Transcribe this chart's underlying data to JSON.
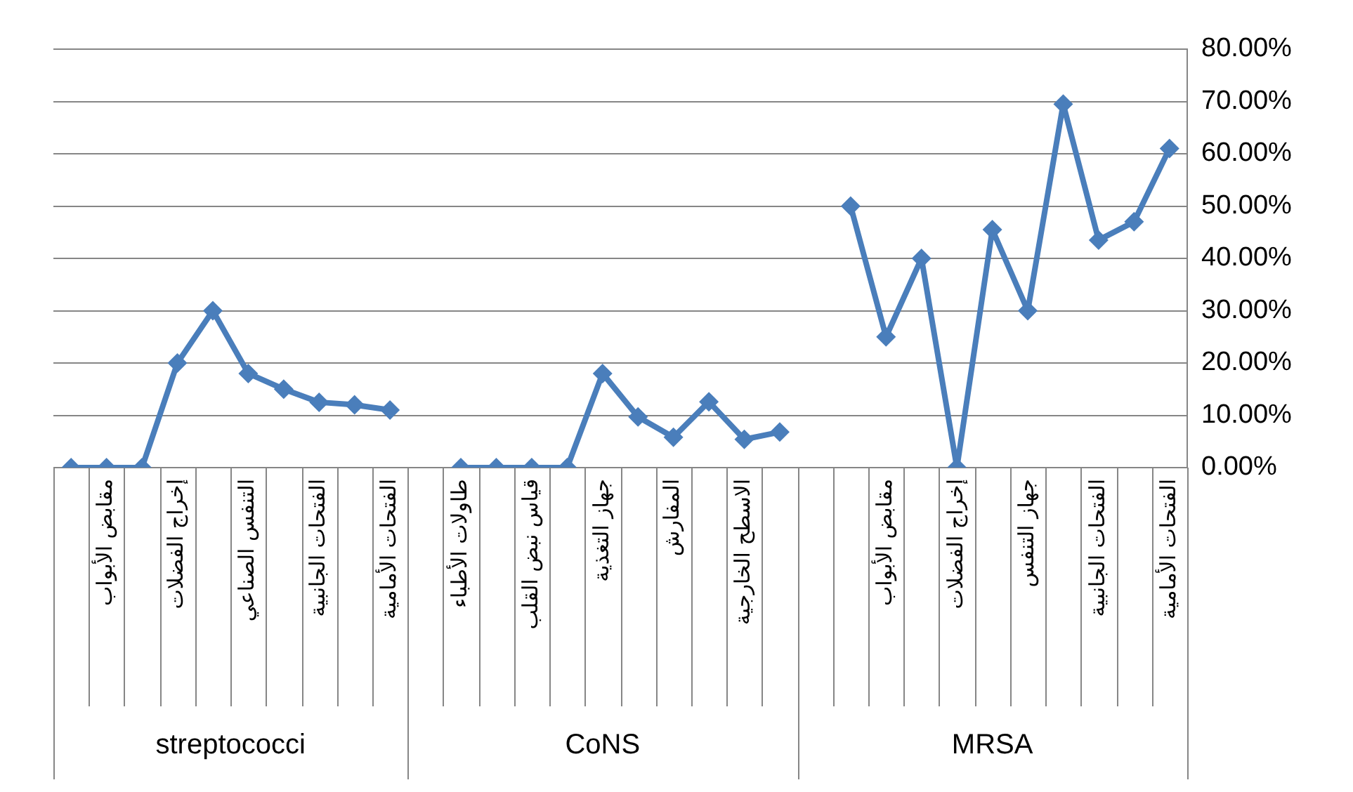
{
  "chart_data": {
    "type": "line",
    "categories": [
      null,
      "مقابض الأبواب",
      null,
      "إخراج الفضلات",
      null,
      "التنفس الصناعي",
      null,
      "الفتحات الجانبية",
      null,
      "الفتحات الأمامية",
      null,
      "طاولات الأطباء",
      null,
      "قياس نبض القلب",
      null,
      "جهاز التغذية",
      null,
      "المفارش",
      null,
      "الاسطح الخارجية",
      null,
      null,
      null,
      "مقابض الأبواب",
      null,
      "إخراج الفضلات",
      null,
      "جهاز التنفس",
      null,
      "الفتحات الجانبية",
      null,
      "الفتحات الأمامية"
    ],
    "series": [
      {
        "name": "streptococci",
        "color": "#4a7ebb",
        "values": [
          0,
          0,
          0,
          20,
          30,
          18,
          15,
          12.5,
          12,
          11,
          null,
          null,
          null,
          null,
          null,
          null,
          null,
          null,
          null,
          null,
          null,
          null,
          null,
          null,
          null,
          null,
          null,
          null,
          null,
          null,
          null,
          null
        ]
      },
      {
        "name": "CoNS",
        "color": "#4a7ebb",
        "values": [
          null,
          null,
          null,
          null,
          null,
          null,
          null,
          null,
          null,
          null,
          null,
          0,
          0,
          0,
          0,
          18,
          9.7,
          5.8,
          12.6,
          5.4,
          6.8,
          null,
          null,
          null,
          null,
          null,
          null,
          null,
          null,
          null,
          null,
          null
        ]
      },
      {
        "name": "MRSA",
        "color": "#4a7ebb",
        "values": [
          null,
          null,
          null,
          null,
          null,
          null,
          null,
          null,
          null,
          null,
          null,
          null,
          null,
          null,
          null,
          null,
          null,
          null,
          null,
          null,
          null,
          null,
          50,
          25,
          40,
          0,
          45.5,
          30,
          69.5,
          43.5,
          47,
          61
        ]
      }
    ],
    "ylim": [
      0,
      80
    ],
    "yticks": [
      {
        "value": 0,
        "label": "0.00%"
      },
      {
        "value": 10,
        "label": "10.00%"
      },
      {
        "value": 20,
        "label": "20.00%"
      },
      {
        "value": 30,
        "label": "30.00%"
      },
      {
        "value": 40,
        "label": "40.00%"
      },
      {
        "value": 50,
        "label": "50.00%"
      },
      {
        "value": 60,
        "label": "60.00%"
      },
      {
        "value": 70,
        "label": "70.00%"
      },
      {
        "value": 80,
        "label": "80.00%"
      }
    ],
    "grid": "y",
    "legend": false,
    "marker": "diamond",
    "line_style": "solid"
  }
}
